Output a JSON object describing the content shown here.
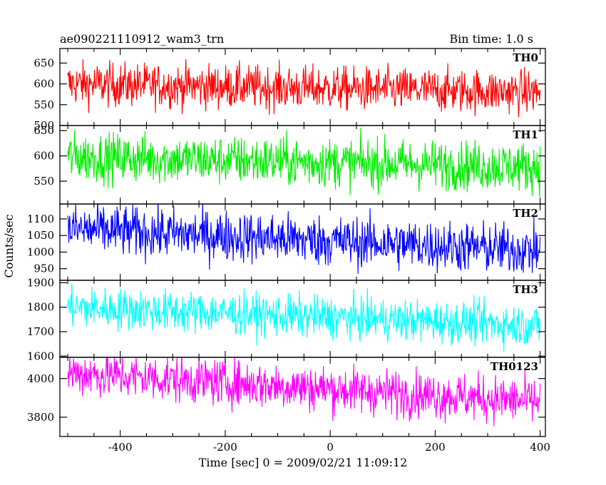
{
  "header": {
    "title": "ae090221110912_wam3_trn",
    "bin_time": "Bin time: 1.0 s"
  },
  "axes": {
    "ylabel": "Counts/sec",
    "xlabel": "Time [sec] 0 = 2009/02/21 11:09:12"
  },
  "chart_data": {
    "type": "line",
    "x_range": [
      -515,
      410
    ],
    "x_ticks": [
      -400,
      -200,
      0,
      200,
      400
    ],
    "panels": [
      {
        "name": "TH0",
        "color": "#ff0000",
        "ylim": [
          500,
          685
        ],
        "yticks": [
          500,
          550,
          600,
          650
        ],
        "trend": {
          "start": 600,
          "end": 580
        },
        "noise": 26
      },
      {
        "name": "TH1",
        "color": "#00ee00",
        "ylim": [
          505,
          660
        ],
        "yticks": [
          550,
          600,
          650
        ],
        "trend": {
          "start": 598,
          "end": 578
        },
        "noise": 24
      },
      {
        "name": "TH2",
        "color": "#0000ff",
        "ylim": [
          915,
          1145
        ],
        "yticks": [
          950,
          1000,
          1050,
          1100
        ],
        "trend": {
          "start": 1070,
          "end": 1005
        },
        "noise": 38
      },
      {
        "name": "TH3",
        "color": "#00ffff",
        "ylim": [
          1595,
          1910
        ],
        "yticks": [
          1600,
          1700,
          1800,
          1900
        ],
        "trend": {
          "start": 1800,
          "end": 1725
        },
        "noise": 42
      },
      {
        "name": "TH0123",
        "color": "#ff00ff",
        "ylim": [
          3700,
          4110
        ],
        "yticks": [
          3800,
          4000
        ],
        "trend": {
          "start": 4030,
          "end": 3880
        },
        "noise": 60
      }
    ],
    "x_data_start": -500,
    "x_data_end": 400,
    "bin": 1.0
  }
}
